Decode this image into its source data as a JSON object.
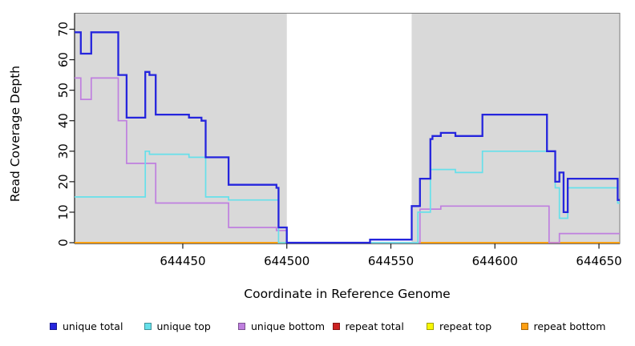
{
  "chart_data": {
    "type": "line",
    "subtype": "step",
    "title": "",
    "xlabel": "Coordinate in Reference Genome",
    "ylabel": "Read Coverage Depth",
    "xlim": [
      644398,
      644660
    ],
    "ylim": [
      0,
      70
    ],
    "xticks": [
      644450,
      644500,
      644550,
      644600,
      644650
    ],
    "yticks": [
      0,
      10,
      20,
      30,
      40,
      50,
      60,
      70
    ],
    "grid": false,
    "legend_position": "bottom",
    "axis_color": "#1a1a1a",
    "box_color": "#7b7b7b",
    "background": {
      "panel_color": "#d9d9d9",
      "band": {
        "x0": 644500,
        "x1": 644560,
        "color": "#ffffff"
      }
    },
    "series": [
      {
        "name": "repeat total",
        "color": "#cc2222",
        "points": [
          [
            644398,
            0
          ]
        ]
      },
      {
        "name": "repeat top",
        "color": "#f7f700",
        "points": [
          [
            644398,
            0
          ]
        ]
      },
      {
        "name": "repeat bottom",
        "color": "#ffa013",
        "points": [
          [
            644398,
            0
          ]
        ]
      },
      {
        "name": "unique bottom",
        "color": "#bf7fdf",
        "points": [
          [
            644398,
            54
          ],
          [
            644401,
            47
          ],
          [
            644406,
            54
          ],
          [
            644419,
            40
          ],
          [
            644423,
            26
          ],
          [
            644437,
            13
          ],
          [
            644472,
            5
          ],
          [
            644495,
            4
          ],
          [
            644500,
            0
          ],
          [
            644564,
            11
          ],
          [
            644574,
            12
          ],
          [
            644626,
            0
          ],
          [
            644631,
            3
          ]
        ]
      },
      {
        "name": "unique top",
        "color": "#66e0ea",
        "points": [
          [
            644398,
            15
          ],
          [
            644432,
            30
          ],
          [
            644434,
            29
          ],
          [
            644453,
            28
          ],
          [
            644461,
            15
          ],
          [
            644472,
            14
          ],
          [
            644496,
            0
          ],
          [
            644563,
            10
          ],
          [
            644569,
            24
          ],
          [
            644581,
            23
          ],
          [
            644594,
            30
          ],
          [
            644629,
            18
          ],
          [
            644631,
            8
          ],
          [
            644635,
            18
          ],
          [
            644659,
            13
          ]
        ]
      },
      {
        "name": "unique total",
        "color": "#2525dd",
        "points": [
          [
            644398,
            69
          ],
          [
            644401,
            62
          ],
          [
            644406,
            69
          ],
          [
            644419,
            55
          ],
          [
            644423,
            41
          ],
          [
            644432,
            56
          ],
          [
            644434,
            55
          ],
          [
            644437,
            42
          ],
          [
            644453,
            41
          ],
          [
            644459,
            40
          ],
          [
            644461,
            28
          ],
          [
            644472,
            19
          ],
          [
            644495,
            18
          ],
          [
            644496,
            5
          ],
          [
            644500,
            0
          ],
          [
            644540,
            1
          ],
          [
            644560,
            12
          ],
          [
            644564,
            21
          ],
          [
            644569,
            34
          ],
          [
            644570,
            35
          ],
          [
            644574,
            36
          ],
          [
            644581,
            35
          ],
          [
            644594,
            42
          ],
          [
            644625,
            30
          ],
          [
            644629,
            20
          ],
          [
            644631,
            23
          ],
          [
            644633,
            10
          ],
          [
            644635,
            21
          ],
          [
            644659,
            14
          ]
        ]
      }
    ],
    "legend": [
      {
        "label": "unique total",
        "color": "#2525dd"
      },
      {
        "label": "unique top",
        "color": "#66e0ea"
      },
      {
        "label": "unique bottom",
        "color": "#bf7fdf"
      },
      {
        "label": "repeat total",
        "color": "#cc2222"
      },
      {
        "label": "repeat top",
        "color": "#f7f700"
      },
      {
        "label": "repeat bottom",
        "color": "#ffa013"
      }
    ]
  }
}
